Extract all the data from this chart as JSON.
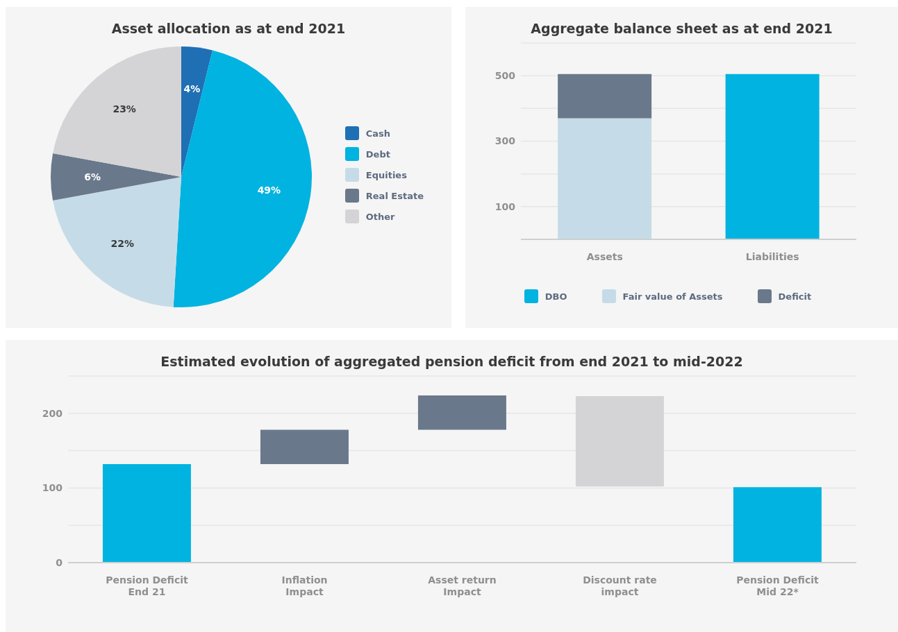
{
  "chart_data": [
    {
      "type": "pie",
      "title": "Asset allocation as at end 2021",
      "categories": [
        "Cash",
        "Debt",
        "Equities",
        "Real Estate",
        "Other"
      ],
      "values": [
        4,
        49,
        22,
        6,
        23
      ],
      "value_labels": [
        "4%",
        "49%",
        "22%",
        "6%",
        "23%"
      ],
      "colors": [
        "#1f6fb5",
        "#00b3e0",
        "#c5dce8",
        "#6a788b",
        "#d4d4d6"
      ],
      "legend": "right"
    },
    {
      "type": "bar",
      "title": "Aggregate balance sheet as at end 2021",
      "categories": [
        "Assets",
        "Liabilities"
      ],
      "stacked": true,
      "series": [
        {
          "name": "DBO",
          "color": "#00b3e0",
          "values": [
            null,
            505
          ]
        },
        {
          "name": "Fair value of Assets",
          "color": "#c5dce8",
          "values": [
            370,
            null
          ]
        },
        {
          "name": "Deficit",
          "color": "#6a788b",
          "values": [
            135,
            null
          ]
        }
      ],
      "ylim": [
        0,
        600
      ],
      "yticks": [
        {
          "value": 0,
          "label": null
        },
        100,
        {
          "value": 200,
          "label": null
        },
        300,
        {
          "value": 400,
          "label": null
        },
        500,
        {
          "value": 600,
          "label": null
        }
      ],
      "grid": "y",
      "legend": "bottom"
    },
    {
      "type": "bar",
      "title": "Estimated evolution of aggregated pension deficit from end 2021 to mid-2022",
      "categories": [
        "Pension Deficit End 21",
        "Inflation Impact",
        "Asset return Impact",
        "Discount rate impact",
        "Pension Deficit Mid 22*"
      ],
      "values": [
        132,
        46,
        46,
        121,
        101
      ],
      "base": [
        0,
        132,
        178,
        102,
        0
      ],
      "colors": [
        "#00b3e0",
        "#6a788b",
        "#6a788b",
        "#d4d4d6",
        "#00b3e0"
      ],
      "ylim": [
        0,
        250
      ],
      "yticks": [
        0,
        {
          "value": 50,
          "label": null
        },
        100,
        {
          "value": 150,
          "label": null
        },
        200,
        {
          "value": 250,
          "label": null
        }
      ],
      "grid": "y"
    }
  ]
}
